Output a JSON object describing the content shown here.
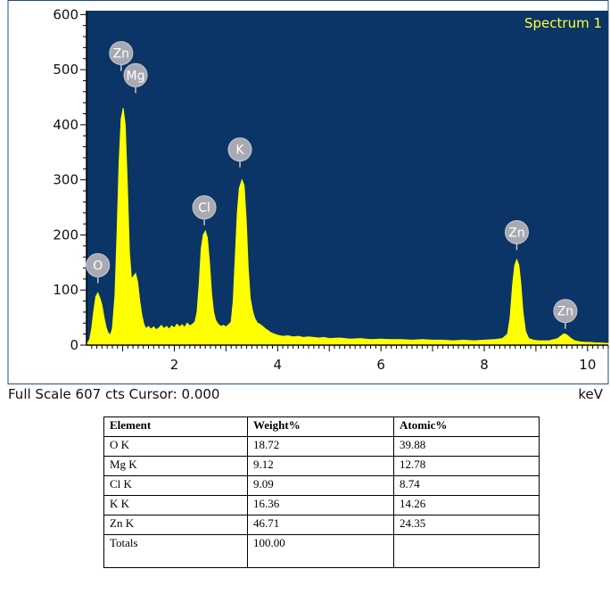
{
  "chart_data": {
    "type": "area",
    "title": "Spectrum 1",
    "xlabel": "keV",
    "ylabel": "",
    "xlim": [
      0.3,
      10.4
    ],
    "ylim": [
      0,
      607
    ],
    "x_ticks": [
      2,
      4,
      6,
      8,
      10
    ],
    "y_ticks": [
      0,
      100,
      200,
      300,
      400,
      500,
      600
    ],
    "grid": false,
    "background": "#0b3566",
    "series_color": "#ffff00",
    "peaks": [
      {
        "label": "O",
        "x": 0.52,
        "y": 95
      },
      {
        "label": "Zn",
        "x": 1.01,
        "y": 430
      },
      {
        "label": "Mg",
        "x": 1.25,
        "y": 130
      },
      {
        "label": "Cl",
        "x": 2.62,
        "y": 207
      },
      {
        "label": "K",
        "x": 3.31,
        "y": 300
      },
      {
        "label": "Zn",
        "x": 8.63,
        "y": 155
      },
      {
        "label": "Zn",
        "x": 9.57,
        "y": 20
      }
    ],
    "peak_label_positions": [
      {
        "label": "O",
        "x": 0.52,
        "y": 145
      },
      {
        "label": "Zn",
        "x": 0.97,
        "y": 530
      },
      {
        "label": "Mg",
        "x": 1.25,
        "y": 490
      },
      {
        "label": "Cl",
        "x": 2.58,
        "y": 250
      },
      {
        "label": "K",
        "x": 3.27,
        "y": 355
      },
      {
        "label": "Zn",
        "x": 8.63,
        "y": 205
      },
      {
        "label": "Zn",
        "x": 9.57,
        "y": 62
      }
    ],
    "spectrum": [
      [
        0.3,
        2
      ],
      [
        0.36,
        10
      ],
      [
        0.4,
        30
      ],
      [
        0.44,
        62
      ],
      [
        0.48,
        88
      ],
      [
        0.52,
        95
      ],
      [
        0.56,
        85
      ],
      [
        0.6,
        72
      ],
      [
        0.64,
        50
      ],
      [
        0.68,
        32
      ],
      [
        0.72,
        22
      ],
      [
        0.76,
        18
      ],
      [
        0.8,
        30
      ],
      [
        0.85,
        90
      ],
      [
        0.89,
        200
      ],
      [
        0.93,
        330
      ],
      [
        0.97,
        410
      ],
      [
        1.01,
        430
      ],
      [
        1.05,
        400
      ],
      [
        1.09,
        290
      ],
      [
        1.13,
        170
      ],
      [
        1.17,
        120
      ],
      [
        1.21,
        125
      ],
      [
        1.25,
        130
      ],
      [
        1.29,
        115
      ],
      [
        1.33,
        80
      ],
      [
        1.37,
        55
      ],
      [
        1.41,
        38
      ],
      [
        1.45,
        30
      ],
      [
        1.5,
        34
      ],
      [
        1.55,
        29
      ],
      [
        1.6,
        33
      ],
      [
        1.65,
        28
      ],
      [
        1.7,
        31
      ],
      [
        1.75,
        36
      ],
      [
        1.8,
        30
      ],
      [
        1.85,
        34
      ],
      [
        1.9,
        29
      ],
      [
        1.95,
        35
      ],
      [
        2.0,
        31
      ],
      [
        2.05,
        38
      ],
      [
        2.1,
        33
      ],
      [
        2.15,
        37
      ],
      [
        2.2,
        32
      ],
      [
        2.25,
        40
      ],
      [
        2.3,
        35
      ],
      [
        2.35,
        38
      ],
      [
        2.4,
        42
      ],
      [
        2.44,
        60
      ],
      [
        2.48,
        110
      ],
      [
        2.52,
        175
      ],
      [
        2.56,
        200
      ],
      [
        2.6,
        207
      ],
      [
        2.64,
        195
      ],
      [
        2.68,
        150
      ],
      [
        2.72,
        95
      ],
      [
        2.76,
        60
      ],
      [
        2.8,
        45
      ],
      [
        2.85,
        38
      ],
      [
        2.9,
        34
      ],
      [
        2.95,
        36
      ],
      [
        3.0,
        33
      ],
      [
        3.05,
        37
      ],
      [
        3.1,
        42
      ],
      [
        3.14,
        80
      ],
      [
        3.18,
        160
      ],
      [
        3.22,
        240
      ],
      [
        3.26,
        285
      ],
      [
        3.31,
        300
      ],
      [
        3.35,
        290
      ],
      [
        3.39,
        230
      ],
      [
        3.43,
        140
      ],
      [
        3.47,
        85
      ],
      [
        3.52,
        60
      ],
      [
        3.56,
        48
      ],
      [
        3.61,
        40
      ],
      [
        3.66,
        38
      ],
      [
        3.71,
        34
      ],
      [
        3.76,
        30
      ],
      [
        3.82,
        26
      ],
      [
        3.88,
        22
      ],
      [
        3.94,
        20
      ],
      [
        4.0,
        18
      ],
      [
        4.1,
        16
      ],
      [
        4.2,
        17
      ],
      [
        4.3,
        15
      ],
      [
        4.4,
        16
      ],
      [
        4.5,
        14
      ],
      [
        4.6,
        15
      ],
      [
        4.7,
        14
      ],
      [
        4.8,
        13
      ],
      [
        4.9,
        14
      ],
      [
        5.0,
        12
      ],
      [
        5.2,
        13
      ],
      [
        5.4,
        11
      ],
      [
        5.6,
        12
      ],
      [
        5.8,
        10
      ],
      [
        6.0,
        11
      ],
      [
        6.2,
        10
      ],
      [
        6.4,
        10
      ],
      [
        6.6,
        9
      ],
      [
        6.8,
        10
      ],
      [
        7.0,
        9
      ],
      [
        7.2,
        9
      ],
      [
        7.4,
        8
      ],
      [
        7.6,
        9
      ],
      [
        7.8,
        8
      ],
      [
        8.0,
        9
      ],
      [
        8.2,
        10
      ],
      [
        8.35,
        12
      ],
      [
        8.45,
        20
      ],
      [
        8.5,
        50
      ],
      [
        8.55,
        110
      ],
      [
        8.59,
        145
      ],
      [
        8.63,
        155
      ],
      [
        8.67,
        145
      ],
      [
        8.71,
        110
      ],
      [
        8.75,
        60
      ],
      [
        8.8,
        25
      ],
      [
        8.86,
        12
      ],
      [
        8.95,
        9
      ],
      [
        9.05,
        8
      ],
      [
        9.15,
        8
      ],
      [
        9.25,
        8
      ],
      [
        9.35,
        10
      ],
      [
        9.42,
        12
      ],
      [
        9.48,
        16
      ],
      [
        9.53,
        20
      ],
      [
        9.57,
        20
      ],
      [
        9.62,
        17
      ],
      [
        9.68,
        12
      ],
      [
        9.75,
        8
      ],
      [
        9.85,
        6
      ],
      [
        9.95,
        5
      ],
      [
        10.05,
        5
      ],
      [
        10.15,
        4
      ],
      [
        10.25,
        4
      ],
      [
        10.4,
        3
      ]
    ]
  },
  "footer": {
    "status": "Full Scale 607 cts Cursor: 0.000",
    "unit": "keV"
  },
  "table": {
    "headers": [
      "Element",
      "Weight%",
      "Atomic%"
    ],
    "rows": [
      [
        "O K",
        "18.72",
        "39.88"
      ],
      [
        "Mg K",
        "9.12",
        "12.78"
      ],
      [
        "Cl K",
        "9.09",
        "8.74"
      ],
      [
        "K K",
        "16.36",
        "14.26"
      ],
      [
        "Zn K",
        "46.71",
        "24.35"
      ],
      [
        "Totals",
        "100.00",
        ""
      ]
    ]
  }
}
